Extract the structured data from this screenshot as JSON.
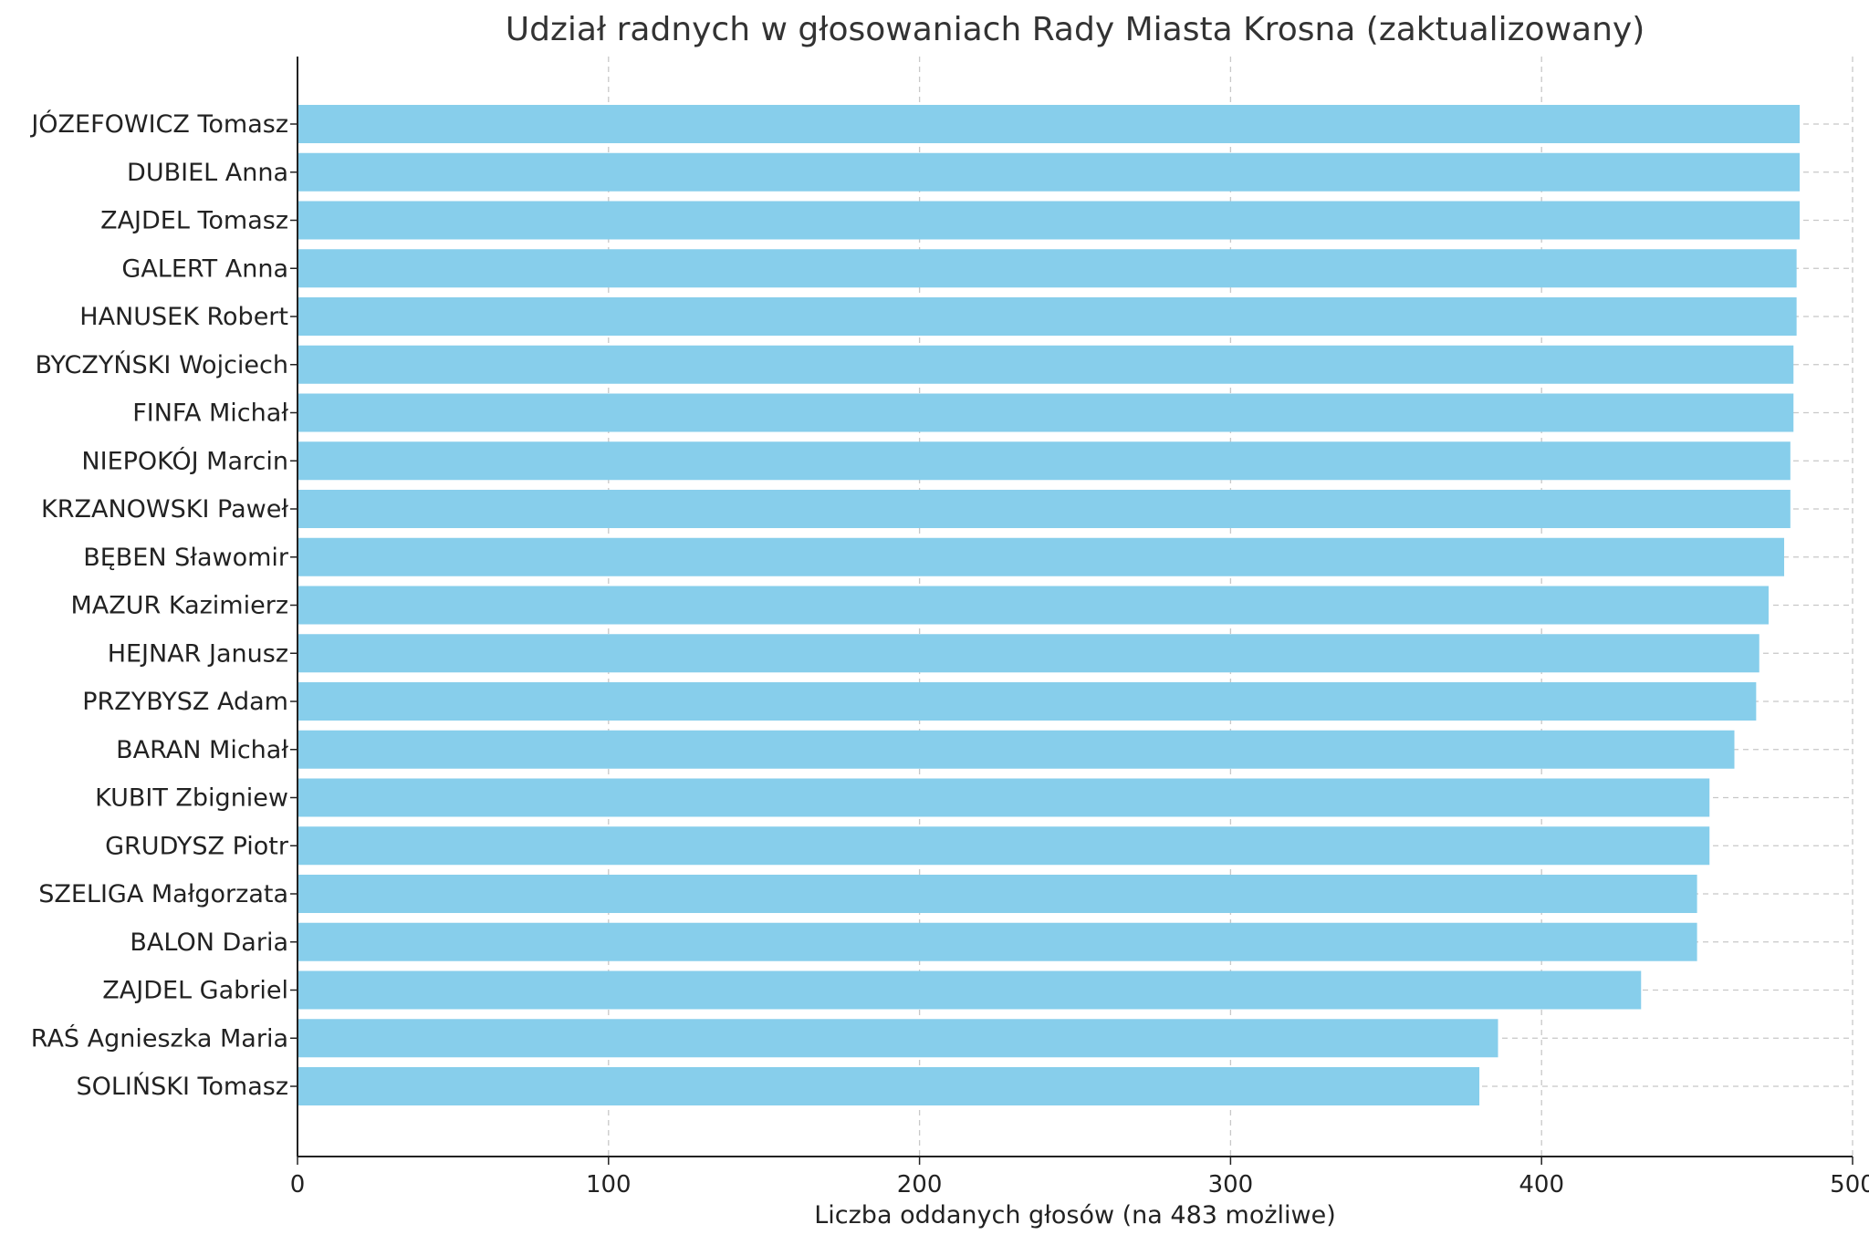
{
  "chart_data": {
    "type": "bar",
    "orientation": "horizontal",
    "title": "Udział radnych w głosowaniach Rady Miasta Krosna (zaktualizowany)",
    "xlabel": "Liczba oddanych głosów (na 483 możliwe)",
    "ylabel": "",
    "xlim": [
      0,
      500
    ],
    "xticks": [
      0,
      100,
      200,
      300,
      400,
      500
    ],
    "grid": true,
    "bar_color": "#87CEEB",
    "categories": [
      "JÓZEFOWICZ Tomasz",
      "DUBIEL Anna",
      "ZAJDEL Tomasz",
      "GALERT Anna",
      "HANUSEK Robert",
      "BYCZYŃSKI Wojciech",
      "FINFA Michał",
      "NIEPOKÓJ Marcin",
      "KRZANOWSKI Paweł",
      "BĘBEN Sławomir",
      "MAZUR Kazimierz",
      "HEJNAR Janusz",
      "PRZYBYSZ Adam",
      "BARAN Michał",
      "KUBIT Zbigniew",
      "GRUDYSZ Piotr",
      "SZELIGA Małgorzata",
      "BALON Daria",
      "ZAJDEL Gabriel",
      "RAŚ Agnieszka Maria",
      "SOLIŃSKI Tomasz"
    ],
    "values": [
      483,
      483,
      483,
      482,
      482,
      481,
      481,
      480,
      480,
      478,
      473,
      470,
      469,
      462,
      454,
      454,
      450,
      450,
      432,
      386,
      380
    ]
  }
}
